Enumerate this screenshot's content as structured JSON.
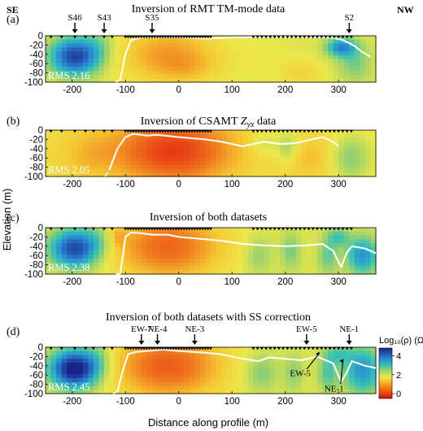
{
  "colors": {
    "high": "#1a2a8e",
    "mid_high": "#2f8fd8",
    "mid": "#e8e84a",
    "low": "#e52a12",
    "boundary": "#ffffff"
  },
  "directions": {
    "left": "SE",
    "right": "NW"
  },
  "y_axis_label": "Elevation (m)",
  "x_axis_label": "Distance along profile (m)",
  "colorbar": {
    "title": "Log₁₀(ρ) (Ωm)",
    "ticks": [
      "4",
      "2",
      "0"
    ],
    "range": [
      -0.5,
      4.8
    ]
  },
  "chart_data": [
    {
      "type": "heatmap",
      "panel_label": "(a)",
      "title": "Inversion of RMT TM-mode data",
      "rms": "RMS 2.16",
      "xlim": [
        -250,
        370
      ],
      "ylim": [
        -100,
        0
      ],
      "x_ticks": [
        "-200",
        "-100",
        "0",
        "100",
        "200",
        "300"
      ],
      "y_ticks": [
        "0",
        "-20",
        "-40",
        "-60",
        "-80",
        "-100"
      ],
      "station_labels": [
        {
          "label": "S46",
          "x": -195
        },
        {
          "label": "S43",
          "x": -140
        },
        {
          "label": "S35",
          "x": -50
        },
        {
          "label": "S2",
          "x": 320
        }
      ],
      "boundary": [
        [
          -110,
          -95
        ],
        [
          -100,
          -40
        ],
        [
          -90,
          -10
        ],
        [
          -70,
          -3
        ],
        [
          0,
          -3
        ],
        [
          50,
          -6
        ],
        [
          100,
          -4
        ],
        [
          200,
          -2
        ],
        [
          290,
          -4
        ],
        [
          310,
          -10
        ],
        [
          330,
          -22
        ],
        [
          345,
          -35
        ],
        [
          360,
          -45
        ]
      ]
    },
    {
      "type": "heatmap",
      "panel_label": "(b)",
      "title": "Inversion of CSAMT Z_yx data",
      "rms": "RMS 2.05",
      "xlim": [
        -250,
        370
      ],
      "ylim": [
        -100,
        0
      ],
      "x_ticks": [
        "-200",
        "-100",
        "0",
        "100",
        "200",
        "300"
      ],
      "y_ticks": [
        "0",
        "-20",
        "-40",
        "-60",
        "-80",
        "-100"
      ],
      "boundary": [
        [
          -130,
          -85
        ],
        [
          -115,
          -40
        ],
        [
          -100,
          -15
        ],
        [
          -85,
          -8
        ],
        [
          -60,
          -12
        ],
        [
          -40,
          -10
        ],
        [
          0,
          -15
        ],
        [
          50,
          -20
        ],
        [
          80,
          -25
        ],
        [
          120,
          -35
        ],
        [
          140,
          -30
        ],
        [
          160,
          -25
        ],
        [
          190,
          -30
        ],
        [
          220,
          -28
        ],
        [
          250,
          -20
        ],
        [
          270,
          -15
        ],
        [
          290,
          -25
        ],
        [
          300,
          -35
        ]
      ]
    },
    {
      "type": "heatmap",
      "panel_label": "(c)",
      "title": "Inversion of both datasets",
      "rms": "RMS 2.38",
      "xlim": [
        -250,
        370
      ],
      "ylim": [
        -100,
        0
      ],
      "x_ticks": [
        "-200",
        "-100",
        "0",
        "100",
        "200",
        "300"
      ],
      "y_ticks": [
        "0",
        "-20",
        "-40",
        "-60",
        "-80",
        "-100"
      ],
      "boundary": [
        [
          -110,
          -100
        ],
        [
          -105,
          -60
        ],
        [
          -100,
          -20
        ],
        [
          -90,
          -10
        ],
        [
          -70,
          -12
        ],
        [
          -50,
          -15
        ],
        [
          -20,
          -15
        ],
        [
          0,
          -20
        ],
        [
          50,
          -25
        ],
        [
          80,
          -28
        ],
        [
          120,
          -35
        ],
        [
          160,
          -38
        ],
        [
          200,
          -40
        ],
        [
          240,
          -38
        ],
        [
          270,
          -35
        ],
        [
          290,
          -50
        ],
        [
          305,
          -85
        ],
        [
          315,
          -55
        ],
        [
          325,
          -40
        ],
        [
          350,
          -45
        ],
        [
          370,
          -55
        ]
      ]
    },
    {
      "type": "heatmap",
      "panel_label": "(d)",
      "title": "Inversion of both datasets with SS correction",
      "rms": "RMS 2.45",
      "xlim": [
        -250,
        370
      ],
      "ylim": [
        -100,
        0
      ],
      "x_ticks": [
        "-200",
        "-100",
        "0",
        "100",
        "200",
        "300"
      ],
      "y_ticks": [
        "0",
        "-20",
        "-40",
        "-60",
        "-80",
        "-100"
      ],
      "station_labels": [
        {
          "label": "EW-7",
          "x": -70
        },
        {
          "label": "NE-4",
          "x": -40
        },
        {
          "label": "NE-3",
          "x": 30
        },
        {
          "label": "EW-5",
          "x": 240
        },
        {
          "label": "NE-1",
          "x": 320
        }
      ],
      "annotations": [
        {
          "label": "EW-5",
          "x": 265,
          "y": -10
        },
        {
          "label": "NE-1",
          "x": 310,
          "y": -25
        }
      ],
      "boundary": [
        [
          -115,
          -95
        ],
        [
          -105,
          -50
        ],
        [
          -95,
          -15
        ],
        [
          -80,
          -10
        ],
        [
          -60,
          -8
        ],
        [
          -30,
          -5
        ],
        [
          0,
          -8
        ],
        [
          50,
          -12
        ],
        [
          80,
          -15
        ],
        [
          120,
          -25
        ],
        [
          150,
          -30
        ],
        [
          170,
          -22
        ],
        [
          200,
          -25
        ],
        [
          230,
          -28
        ],
        [
          260,
          -20
        ],
        [
          290,
          -35
        ],
        [
          305,
          -75
        ],
        [
          315,
          -55
        ],
        [
          325,
          -30
        ],
        [
          350,
          -40
        ],
        [
          370,
          -45
        ]
      ]
    }
  ]
}
